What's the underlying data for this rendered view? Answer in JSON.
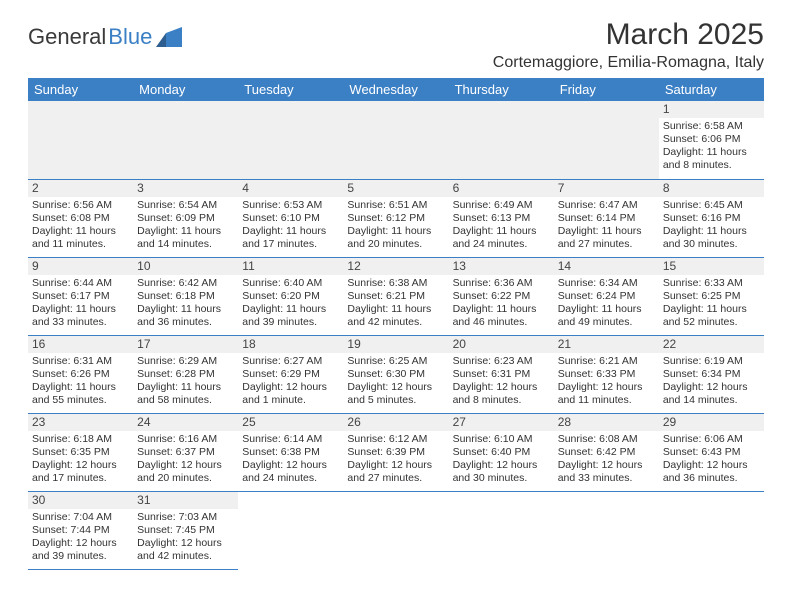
{
  "logo": {
    "text1": "General",
    "text2": "Blue"
  },
  "title": "March 2025",
  "location": "Cortemaggiore, Emilia-Romagna, Italy",
  "colors": {
    "header_bg": "#3b7fc4",
    "header_fg": "#ffffff",
    "daynum_bg": "#f0f0f0",
    "border": "#3b7fc4",
    "text": "#333333"
  },
  "weekdays": [
    "Sunday",
    "Monday",
    "Tuesday",
    "Wednesday",
    "Thursday",
    "Friday",
    "Saturday"
  ],
  "weeks": [
    [
      null,
      null,
      null,
      null,
      null,
      null,
      {
        "n": "1",
        "sr": "Sunrise: 6:58 AM",
        "ss": "Sunset: 6:06 PM",
        "dl": "Daylight: 11 hours and 8 minutes."
      }
    ],
    [
      {
        "n": "2",
        "sr": "Sunrise: 6:56 AM",
        "ss": "Sunset: 6:08 PM",
        "dl": "Daylight: 11 hours and 11 minutes."
      },
      {
        "n": "3",
        "sr": "Sunrise: 6:54 AM",
        "ss": "Sunset: 6:09 PM",
        "dl": "Daylight: 11 hours and 14 minutes."
      },
      {
        "n": "4",
        "sr": "Sunrise: 6:53 AM",
        "ss": "Sunset: 6:10 PM",
        "dl": "Daylight: 11 hours and 17 minutes."
      },
      {
        "n": "5",
        "sr": "Sunrise: 6:51 AM",
        "ss": "Sunset: 6:12 PM",
        "dl": "Daylight: 11 hours and 20 minutes."
      },
      {
        "n": "6",
        "sr": "Sunrise: 6:49 AM",
        "ss": "Sunset: 6:13 PM",
        "dl": "Daylight: 11 hours and 24 minutes."
      },
      {
        "n": "7",
        "sr": "Sunrise: 6:47 AM",
        "ss": "Sunset: 6:14 PM",
        "dl": "Daylight: 11 hours and 27 minutes."
      },
      {
        "n": "8",
        "sr": "Sunrise: 6:45 AM",
        "ss": "Sunset: 6:16 PM",
        "dl": "Daylight: 11 hours and 30 minutes."
      }
    ],
    [
      {
        "n": "9",
        "sr": "Sunrise: 6:44 AM",
        "ss": "Sunset: 6:17 PM",
        "dl": "Daylight: 11 hours and 33 minutes."
      },
      {
        "n": "10",
        "sr": "Sunrise: 6:42 AM",
        "ss": "Sunset: 6:18 PM",
        "dl": "Daylight: 11 hours and 36 minutes."
      },
      {
        "n": "11",
        "sr": "Sunrise: 6:40 AM",
        "ss": "Sunset: 6:20 PM",
        "dl": "Daylight: 11 hours and 39 minutes."
      },
      {
        "n": "12",
        "sr": "Sunrise: 6:38 AM",
        "ss": "Sunset: 6:21 PM",
        "dl": "Daylight: 11 hours and 42 minutes."
      },
      {
        "n": "13",
        "sr": "Sunrise: 6:36 AM",
        "ss": "Sunset: 6:22 PM",
        "dl": "Daylight: 11 hours and 46 minutes."
      },
      {
        "n": "14",
        "sr": "Sunrise: 6:34 AM",
        "ss": "Sunset: 6:24 PM",
        "dl": "Daylight: 11 hours and 49 minutes."
      },
      {
        "n": "15",
        "sr": "Sunrise: 6:33 AM",
        "ss": "Sunset: 6:25 PM",
        "dl": "Daylight: 11 hours and 52 minutes."
      }
    ],
    [
      {
        "n": "16",
        "sr": "Sunrise: 6:31 AM",
        "ss": "Sunset: 6:26 PM",
        "dl": "Daylight: 11 hours and 55 minutes."
      },
      {
        "n": "17",
        "sr": "Sunrise: 6:29 AM",
        "ss": "Sunset: 6:28 PM",
        "dl": "Daylight: 11 hours and 58 minutes."
      },
      {
        "n": "18",
        "sr": "Sunrise: 6:27 AM",
        "ss": "Sunset: 6:29 PM",
        "dl": "Daylight: 12 hours and 1 minute."
      },
      {
        "n": "19",
        "sr": "Sunrise: 6:25 AM",
        "ss": "Sunset: 6:30 PM",
        "dl": "Daylight: 12 hours and 5 minutes."
      },
      {
        "n": "20",
        "sr": "Sunrise: 6:23 AM",
        "ss": "Sunset: 6:31 PM",
        "dl": "Daylight: 12 hours and 8 minutes."
      },
      {
        "n": "21",
        "sr": "Sunrise: 6:21 AM",
        "ss": "Sunset: 6:33 PM",
        "dl": "Daylight: 12 hours and 11 minutes."
      },
      {
        "n": "22",
        "sr": "Sunrise: 6:19 AM",
        "ss": "Sunset: 6:34 PM",
        "dl": "Daylight: 12 hours and 14 minutes."
      }
    ],
    [
      {
        "n": "23",
        "sr": "Sunrise: 6:18 AM",
        "ss": "Sunset: 6:35 PM",
        "dl": "Daylight: 12 hours and 17 minutes."
      },
      {
        "n": "24",
        "sr": "Sunrise: 6:16 AM",
        "ss": "Sunset: 6:37 PM",
        "dl": "Daylight: 12 hours and 20 minutes."
      },
      {
        "n": "25",
        "sr": "Sunrise: 6:14 AM",
        "ss": "Sunset: 6:38 PM",
        "dl": "Daylight: 12 hours and 24 minutes."
      },
      {
        "n": "26",
        "sr": "Sunrise: 6:12 AM",
        "ss": "Sunset: 6:39 PM",
        "dl": "Daylight: 12 hours and 27 minutes."
      },
      {
        "n": "27",
        "sr": "Sunrise: 6:10 AM",
        "ss": "Sunset: 6:40 PM",
        "dl": "Daylight: 12 hours and 30 minutes."
      },
      {
        "n": "28",
        "sr": "Sunrise: 6:08 AM",
        "ss": "Sunset: 6:42 PM",
        "dl": "Daylight: 12 hours and 33 minutes."
      },
      {
        "n": "29",
        "sr": "Sunrise: 6:06 AM",
        "ss": "Sunset: 6:43 PM",
        "dl": "Daylight: 12 hours and 36 minutes."
      }
    ],
    [
      {
        "n": "30",
        "sr": "Sunrise: 7:04 AM",
        "ss": "Sunset: 7:44 PM",
        "dl": "Daylight: 12 hours and 39 minutes."
      },
      {
        "n": "31",
        "sr": "Sunrise: 7:03 AM",
        "ss": "Sunset: 7:45 PM",
        "dl": "Daylight: 12 hours and 42 minutes."
      },
      null,
      null,
      null,
      null,
      null
    ]
  ]
}
